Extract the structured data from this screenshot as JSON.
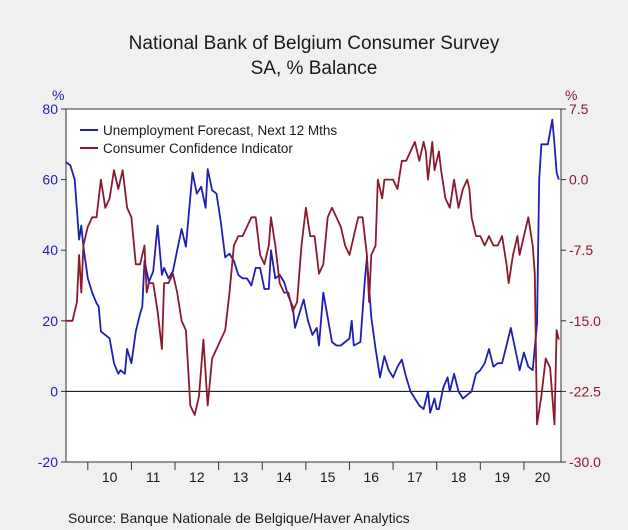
{
  "chart_data": {
    "type": "line",
    "title": "National Bank of Belgium Consumer Survey",
    "subtitle": "SA, % Balance",
    "left_axis_label": "%",
    "right_axis_label": "%",
    "left_ylim": [
      -20,
      80
    ],
    "right_ylim": [
      -30.0,
      7.5
    ],
    "left_ticks": [
      "80",
      "60",
      "40",
      "20",
      "0",
      "-20"
    ],
    "right_ticks": [
      "7.5",
      "0.0",
      "-7.5",
      "-15.0",
      "-22.5",
      "-30.0"
    ],
    "x_ticks": [
      "10",
      "11",
      "12",
      "13",
      "14",
      "15",
      "16",
      "17",
      "18",
      "19",
      "20"
    ],
    "source": "Source:  Banque Nationale de Belgique/Haver Analytics",
    "legend_position": "top-left",
    "colors": {
      "series_1": "#1f1fb4",
      "series_2": "#8b1a2f"
    },
    "series": [
      {
        "name": "Unemployment Forecast, Next 12 Mths",
        "axis": "left",
        "points": [
          [
            2009.5,
            65
          ],
          [
            2009.6,
            64
          ],
          [
            2009.7,
            60
          ],
          [
            2009.8,
            43
          ],
          [
            2009.85,
            47
          ],
          [
            2009.9,
            41
          ],
          [
            2010.0,
            32
          ],
          [
            2010.1,
            28
          ],
          [
            2010.2,
            25
          ],
          [
            2010.25,
            24
          ],
          [
            2010.3,
            17
          ],
          [
            2010.4,
            16
          ],
          [
            2010.5,
            15
          ],
          [
            2010.6,
            8
          ],
          [
            2010.7,
            5
          ],
          [
            2010.75,
            6
          ],
          [
            2010.85,
            5
          ],
          [
            2010.9,
            12
          ],
          [
            2011.0,
            8
          ],
          [
            2011.1,
            17
          ],
          [
            2011.2,
            22
          ],
          [
            2011.25,
            24
          ],
          [
            2011.3,
            37
          ],
          [
            2011.4,
            31
          ],
          [
            2011.5,
            34
          ],
          [
            2011.6,
            47
          ],
          [
            2011.7,
            33
          ],
          [
            2011.75,
            35
          ],
          [
            2011.85,
            32
          ],
          [
            2011.95,
            34
          ],
          [
            2012.05,
            40
          ],
          [
            2012.15,
            46
          ],
          [
            2012.25,
            41
          ],
          [
            2012.4,
            62
          ],
          [
            2012.5,
            56
          ],
          [
            2012.6,
            58
          ],
          [
            2012.7,
            52
          ],
          [
            2012.75,
            63
          ],
          [
            2012.85,
            57
          ],
          [
            2012.95,
            56
          ],
          [
            2013.05,
            48
          ],
          [
            2013.15,
            38
          ],
          [
            2013.25,
            39
          ],
          [
            2013.35,
            37
          ],
          [
            2013.45,
            33
          ],
          [
            2013.55,
            32
          ],
          [
            2013.65,
            32
          ],
          [
            2013.75,
            30
          ],
          [
            2013.85,
            35
          ],
          [
            2013.95,
            35
          ],
          [
            2014.05,
            29
          ],
          [
            2014.15,
            29
          ],
          [
            2014.2,
            40
          ],
          [
            2014.3,
            32
          ],
          [
            2014.4,
            33
          ],
          [
            2014.5,
            31
          ],
          [
            2014.6,
            27
          ],
          [
            2014.7,
            24
          ],
          [
            2014.75,
            18
          ],
          [
            2014.85,
            22
          ],
          [
            2014.95,
            26
          ],
          [
            2015.05,
            20
          ],
          [
            2015.15,
            16
          ],
          [
            2015.25,
            18
          ],
          [
            2015.3,
            13
          ],
          [
            2015.4,
            28
          ],
          [
            2015.5,
            21
          ],
          [
            2015.6,
            14
          ],
          [
            2015.7,
            13
          ],
          [
            2015.8,
            13
          ],
          [
            2015.9,
            14
          ],
          [
            2016.0,
            15
          ],
          [
            2016.05,
            20
          ],
          [
            2016.1,
            13
          ],
          [
            2016.25,
            14
          ],
          [
            2016.35,
            31
          ],
          [
            2016.4,
            38
          ],
          [
            2016.5,
            21
          ],
          [
            2016.6,
            12
          ],
          [
            2016.7,
            4
          ],
          [
            2016.8,
            10
          ],
          [
            2016.9,
            6
          ],
          [
            2017.0,
            4
          ],
          [
            2017.1,
            7
          ],
          [
            2017.2,
            9
          ],
          [
            2017.3,
            4
          ],
          [
            2017.4,
            0
          ],
          [
            2017.5,
            -2
          ],
          [
            2017.6,
            -4
          ],
          [
            2017.7,
            -5
          ],
          [
            2017.8,
            0
          ],
          [
            2017.85,
            -6
          ],
          [
            2017.95,
            -2
          ],
          [
            2018.0,
            -5
          ],
          [
            2018.05,
            -5
          ],
          [
            2018.15,
            1
          ],
          [
            2018.25,
            4
          ],
          [
            2018.3,
            0
          ],
          [
            2018.4,
            5
          ],
          [
            2018.5,
            0
          ],
          [
            2018.6,
            -2
          ],
          [
            2018.7,
            -1
          ],
          [
            2018.8,
            0
          ],
          [
            2018.9,
            5
          ],
          [
            2019.0,
            6
          ],
          [
            2019.1,
            8
          ],
          [
            2019.2,
            12
          ],
          [
            2019.3,
            7
          ],
          [
            2019.4,
            8
          ],
          [
            2019.5,
            8
          ],
          [
            2019.6,
            13
          ],
          [
            2019.7,
            18
          ],
          [
            2019.8,
            12
          ],
          [
            2019.9,
            6
          ],
          [
            2020.0,
            11
          ],
          [
            2020.1,
            7
          ],
          [
            2020.2,
            6
          ],
          [
            2020.3,
            19
          ],
          [
            2020.35,
            60
          ],
          [
            2020.4,
            70
          ],
          [
            2020.55,
            70
          ],
          [
            2020.65,
            77
          ],
          [
            2020.7,
            70
          ],
          [
            2020.75,
            62
          ],
          [
            2020.8,
            60
          ]
        ]
      },
      {
        "name": "Consumer Confidence Indicator",
        "axis": "right",
        "points": [
          [
            2009.5,
            -15
          ],
          [
            2009.65,
            -15
          ],
          [
            2009.75,
            -13
          ],
          [
            2009.8,
            -8
          ],
          [
            2009.85,
            -12
          ],
          [
            2009.9,
            -7
          ],
          [
            2010.0,
            -5
          ],
          [
            2010.1,
            -4
          ],
          [
            2010.2,
            -4
          ],
          [
            2010.3,
            0
          ],
          [
            2010.4,
            -3
          ],
          [
            2010.5,
            -2
          ],
          [
            2010.6,
            1
          ],
          [
            2010.7,
            -1
          ],
          [
            2010.8,
            1
          ],
          [
            2010.9,
            -3
          ],
          [
            2011.0,
            -4
          ],
          [
            2011.1,
            -9
          ],
          [
            2011.2,
            -9
          ],
          [
            2011.3,
            -7
          ],
          [
            2011.35,
            -12
          ],
          [
            2011.4,
            -11
          ],
          [
            2011.5,
            -11
          ],
          [
            2011.6,
            -14
          ],
          [
            2011.7,
            -18
          ],
          [
            2011.75,
            -11
          ],
          [
            2011.85,
            -11
          ],
          [
            2011.95,
            -10
          ],
          [
            2012.05,
            -12
          ],
          [
            2012.15,
            -15
          ],
          [
            2012.25,
            -16
          ],
          [
            2012.35,
            -24
          ],
          [
            2012.45,
            -25
          ],
          [
            2012.55,
            -23
          ],
          [
            2012.65,
            -17
          ],
          [
            2012.75,
            -24
          ],
          [
            2012.85,
            -19
          ],
          [
            2012.95,
            -18
          ],
          [
            2013.05,
            -17
          ],
          [
            2013.15,
            -16
          ],
          [
            2013.25,
            -12
          ],
          [
            2013.35,
            -7
          ],
          [
            2013.45,
            -6
          ],
          [
            2013.55,
            -6
          ],
          [
            2013.65,
            -5
          ],
          [
            2013.75,
            -4
          ],
          [
            2013.85,
            -4
          ],
          [
            2013.95,
            -8
          ],
          [
            2014.05,
            -9
          ],
          [
            2014.15,
            -7
          ],
          [
            2014.2,
            -4
          ],
          [
            2014.3,
            -7
          ],
          [
            2014.4,
            -11
          ],
          [
            2014.5,
            -12
          ],
          [
            2014.6,
            -12
          ],
          [
            2014.7,
            -14
          ],
          [
            2014.8,
            -13
          ],
          [
            2014.9,
            -7
          ],
          [
            2015.0,
            -3
          ],
          [
            2015.1,
            -6
          ],
          [
            2015.2,
            -6
          ],
          [
            2015.3,
            -10
          ],
          [
            2015.4,
            -9
          ],
          [
            2015.5,
            -4
          ],
          [
            2015.6,
            -3
          ],
          [
            2015.7,
            -4
          ],
          [
            2015.8,
            -5
          ],
          [
            2015.9,
            -7
          ],
          [
            2016.0,
            -8
          ],
          [
            2016.1,
            -6
          ],
          [
            2016.2,
            -4
          ],
          [
            2016.3,
            -4
          ],
          [
            2016.4,
            -8
          ],
          [
            2016.45,
            -13
          ],
          [
            2016.5,
            -8
          ],
          [
            2016.6,
            -7
          ],
          [
            2016.65,
            0
          ],
          [
            2016.75,
            -2
          ],
          [
            2016.8,
            0
          ],
          [
            2016.9,
            0
          ],
          [
            2017.0,
            0
          ],
          [
            2017.1,
            -1
          ],
          [
            2017.2,
            2
          ],
          [
            2017.3,
            2
          ],
          [
            2017.4,
            3
          ],
          [
            2017.5,
            4
          ],
          [
            2017.6,
            2
          ],
          [
            2017.7,
            4
          ],
          [
            2017.75,
            3
          ],
          [
            2017.8,
            0
          ],
          [
            2017.9,
            4
          ],
          [
            2017.95,
            1
          ],
          [
            2018.05,
            3
          ],
          [
            2018.1,
            1
          ],
          [
            2018.2,
            -2
          ],
          [
            2018.3,
            -3
          ],
          [
            2018.4,
            0
          ],
          [
            2018.5,
            -3
          ],
          [
            2018.6,
            -1
          ],
          [
            2018.7,
            0
          ],
          [
            2018.75,
            -1
          ],
          [
            2018.8,
            -4
          ],
          [
            2018.9,
            -6
          ],
          [
            2019.0,
            -6
          ],
          [
            2019.1,
            -7
          ],
          [
            2019.2,
            -6
          ],
          [
            2019.3,
            -7
          ],
          [
            2019.4,
            -7
          ],
          [
            2019.5,
            -6
          ],
          [
            2019.6,
            -9
          ],
          [
            2019.65,
            -11
          ],
          [
            2019.75,
            -8
          ],
          [
            2019.85,
            -6
          ],
          [
            2019.9,
            -8
          ],
          [
            2020.0,
            -6
          ],
          [
            2020.1,
            -4
          ],
          [
            2020.2,
            -7
          ],
          [
            2020.25,
            -10
          ],
          [
            2020.3,
            -26
          ],
          [
            2020.4,
            -23
          ],
          [
            2020.5,
            -19
          ],
          [
            2020.6,
            -20
          ],
          [
            2020.7,
            -26
          ],
          [
            2020.75,
            -16
          ],
          [
            2020.8,
            -17
          ]
        ]
      }
    ]
  }
}
